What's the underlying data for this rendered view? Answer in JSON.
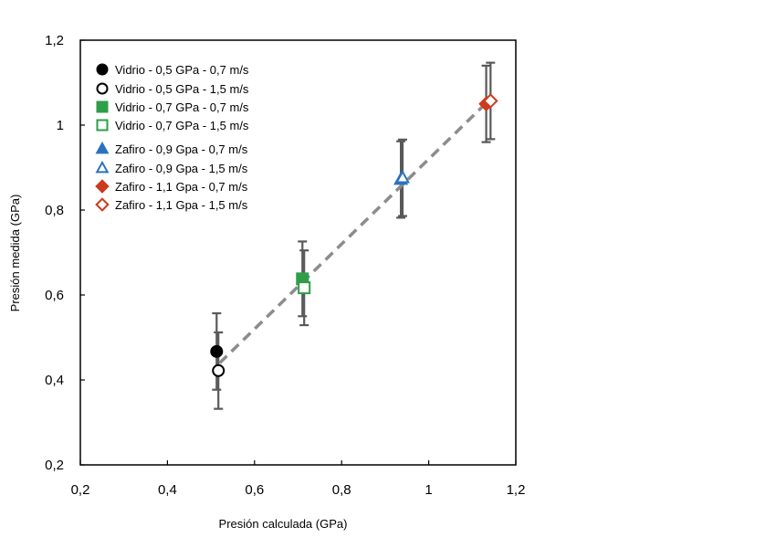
{
  "chart_data": {
    "type": "scatter",
    "title": "",
    "xlabel": "Presión calculada (GPa)",
    "ylabel": "Presión medida (GPa)",
    "xlim": [
      0.2,
      1.2
    ],
    "ylim": [
      0.2,
      1.2
    ],
    "xticks": [
      "0,2",
      "0,4",
      "0,6",
      "0,8",
      "1",
      "1,2"
    ],
    "yticks": [
      "0,2",
      "0,4",
      "0,6",
      "0,8",
      "1",
      "1,2"
    ],
    "xtick_values": [
      0.2,
      0.4,
      0.6,
      0.8,
      1.0,
      1.2
    ],
    "ytick_values": [
      0.2,
      0.4,
      0.6,
      0.8,
      1.0,
      1.2
    ],
    "grid": false,
    "legend_position": "top-left",
    "trendline": {
      "style": "dashed",
      "color": "#8c8c8c",
      "x": [
        0.52,
        1.14
      ],
      "y": [
        0.44,
        1.06
      ]
    },
    "errorbar_color": "#595959",
    "series": [
      {
        "name": "Vidrio - 0,5 GPa - 0,7 m/s",
        "marker": "circle",
        "filled": true,
        "color": "#000000",
        "x": 0.513,
        "y": 0.467,
        "err": 0.09
      },
      {
        "name": "Vidrio - 0,5 GPa - 1,5 m/s",
        "marker": "circle",
        "filled": false,
        "color": "#000000",
        "x": 0.517,
        "y": 0.422,
        "err": 0.09
      },
      {
        "name": "Vidrio - 0,7 GPa - 0,7 m/s",
        "marker": "square",
        "filled": true,
        "color": "#2e9e48",
        "x": 0.71,
        "y": 0.638,
        "err": 0.088
      },
      {
        "name": "Vidrio - 0,7 GPa -  1,5 m/s",
        "marker": "square",
        "filled": false,
        "color": "#2e9e48",
        "x": 0.714,
        "y": 0.617,
        "err": 0.088
      },
      {
        "name": "Zafiro - 0,9 Gpa - 0,7 m/s",
        "marker": "triangle",
        "filled": true,
        "color": "#2a72c0",
        "x": 0.936,
        "y": 0.872,
        "err": 0.09
      },
      {
        "name": "Zafiro - 0,9 Gpa - 1,5 m/s",
        "marker": "triangle",
        "filled": false,
        "color": "#2a72c0",
        "x": 0.94,
        "y": 0.876,
        "err": 0.09
      },
      {
        "name": "Zafiro - 1,1 Gpa - 0,7 m/s",
        "marker": "diamond",
        "filled": true,
        "color": "#cc3a1c",
        "x": 1.132,
        "y": 1.05,
        "err": 0.09
      },
      {
        "name": "Zafiro - 1,1 Gpa - 1,5 m/s",
        "marker": "diamond",
        "filled": false,
        "color": "#cc3a1c",
        "x": 1.142,
        "y": 1.057,
        "err": 0.09
      }
    ]
  }
}
